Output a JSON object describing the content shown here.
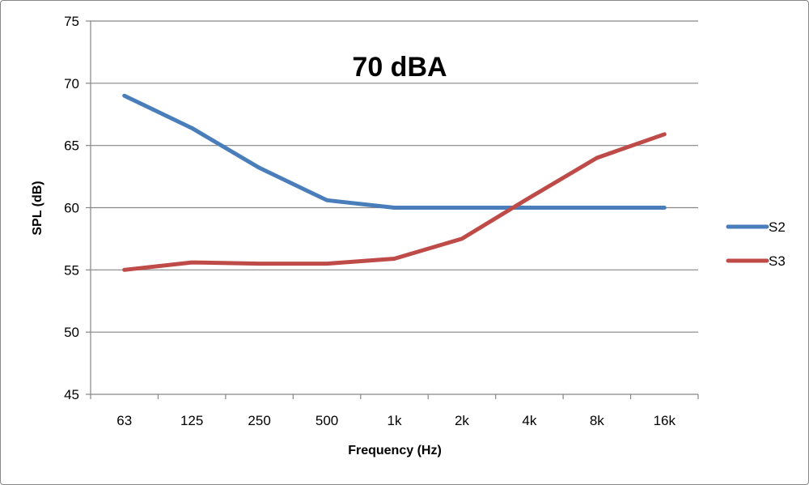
{
  "chart_data": {
    "type": "line",
    "title": "70 dBA",
    "xlabel": "Frequency (Hz)",
    "ylabel": "SPL (dB)",
    "categories": [
      "63",
      "125",
      "250",
      "500",
      "1k",
      "2k",
      "4k",
      "8k",
      "16k"
    ],
    "ylim": [
      45,
      75
    ],
    "yticks": [
      45,
      50,
      55,
      60,
      65,
      70,
      75
    ],
    "grid": true,
    "legend_position": "right",
    "series": [
      {
        "name": "S2",
        "color": "#4a7ebb",
        "values": [
          69.0,
          66.4,
          63.2,
          60.6,
          60.0,
          60.0,
          60.0,
          60.0,
          60.0
        ]
      },
      {
        "name": "S3",
        "color": "#be4b48",
        "values": [
          55.0,
          55.6,
          55.5,
          55.5,
          55.9,
          57.5,
          60.8,
          64.0,
          65.9
        ]
      }
    ]
  }
}
